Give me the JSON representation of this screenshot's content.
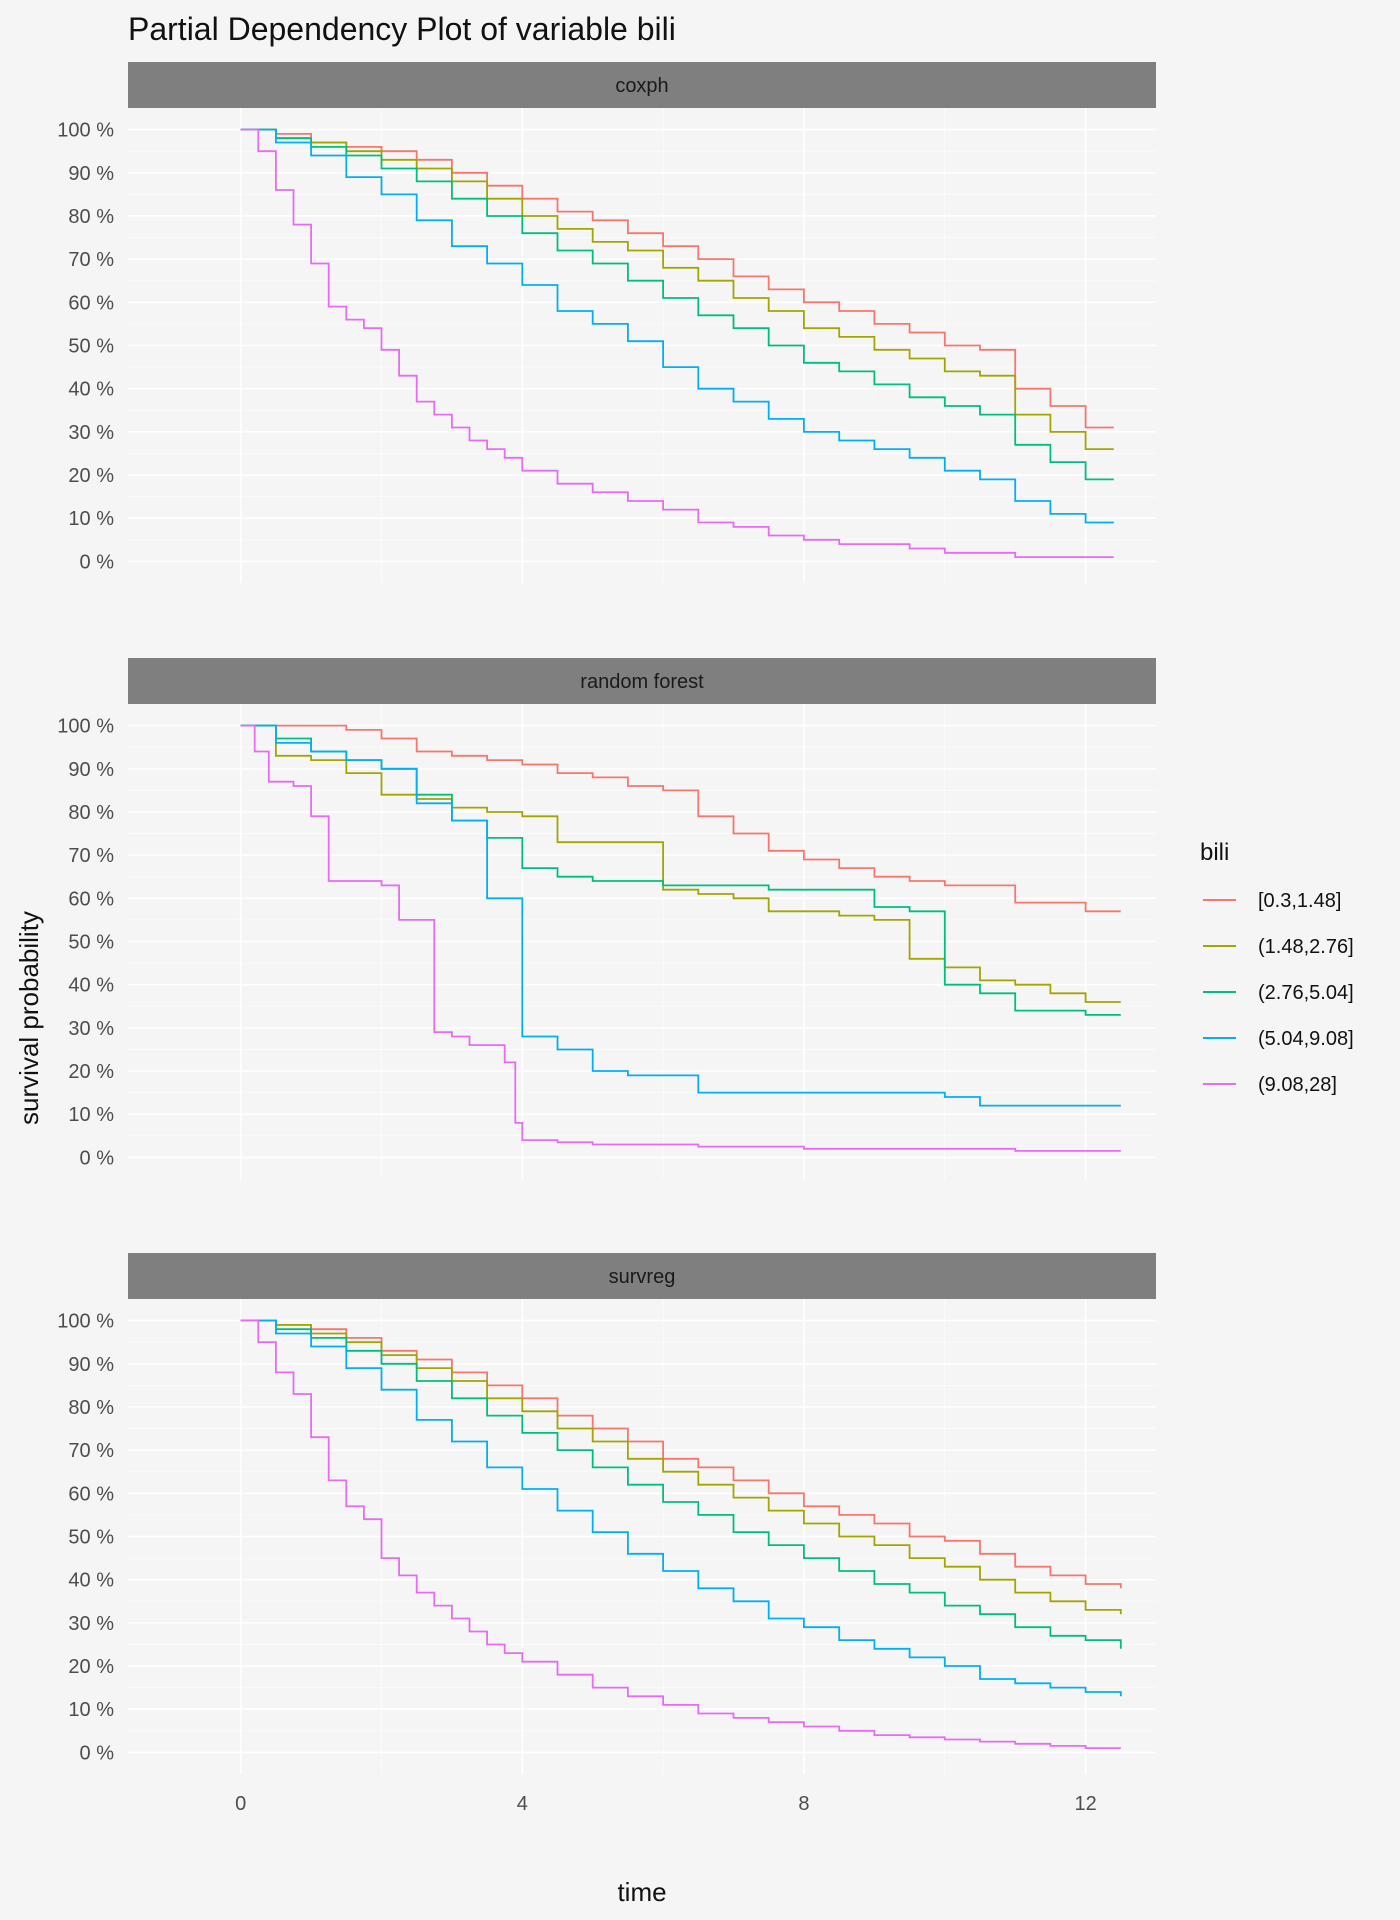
{
  "chart_data": {
    "type": "line",
    "title": "Partial Dependency Plot of variable bili",
    "xlabel": "time",
    "ylabel": "survival probability",
    "xlim": [
      -1.6,
      13.0
    ],
    "ylim": [
      -5,
      105
    ],
    "x_ticks": [
      0,
      4,
      8,
      12
    ],
    "x_tick_labels": [
      "0",
      "4",
      "8",
      "12"
    ],
    "y_ticks": [
      0,
      10,
      20,
      30,
      40,
      50,
      60,
      70,
      80,
      90,
      100
    ],
    "y_tick_labels": [
      "0 %",
      "10 %",
      "20 %",
      "30 %",
      "40 %",
      "50 %",
      "60 %",
      "70 %",
      "80 %",
      "90 %",
      "100 %"
    ],
    "grid": true,
    "step": true,
    "legend": {
      "title": "bili",
      "position": "right",
      "entries": [
        "[0.3,1.48]",
        "(1.48,2.76]",
        "(2.76,5.04]",
        "(5.04,9.08]",
        "(9.08,28]"
      ],
      "colors": [
        "#F8766D",
        "#A3A500",
        "#00BF7D",
        "#00B0F6",
        "#E76BF3"
      ]
    },
    "panels": [
      {
        "strip": "coxph",
        "series": [
          {
            "name": "[0.3,1.48]",
            "x": [
              0,
              0.5,
              1,
              1.5,
              2,
              2.5,
              3,
              3.5,
              4,
              4.5,
              5,
              5.5,
              6,
              6.5,
              7,
              7.5,
              8,
              8.5,
              9,
              9.5,
              10,
              10.5,
              11,
              11.5,
              12,
              12.4
            ],
            "y": [
              100,
              99,
              97,
              96,
              95,
              93,
              90,
              87,
              84,
              81,
              79,
              76,
              73,
              70,
              66,
              63,
              60,
              58,
              55,
              53,
              50,
              49,
              40,
              36,
              31,
              31
            ]
          },
          {
            "name": "(1.48,2.76]",
            "x": [
              0,
              0.5,
              1,
              1.5,
              2,
              2.5,
              3,
              3.5,
              4,
              4.5,
              5,
              5.5,
              6,
              6.5,
              7,
              7.5,
              8,
              8.5,
              9,
              9.5,
              10,
              10.5,
              11,
              11.5,
              12,
              12.4
            ],
            "y": [
              100,
              98,
              97,
              95,
              93,
              91,
              88,
              84,
              80,
              77,
              74,
              72,
              68,
              65,
              61,
              58,
              54,
              52,
              49,
              47,
              44,
              43,
              34,
              30,
              26,
              26
            ]
          },
          {
            "name": "(2.76,5.04]",
            "x": [
              0,
              0.5,
              1,
              1.5,
              2,
              2.5,
              3,
              3.5,
              4,
              4.5,
              5,
              5.5,
              6,
              6.5,
              7,
              7.5,
              8,
              8.5,
              9,
              9.5,
              10,
              10.5,
              11,
              11.5,
              12,
              12.4
            ],
            "y": [
              100,
              98,
              96,
              94,
              91,
              88,
              84,
              80,
              76,
              72,
              69,
              65,
              61,
              57,
              54,
              50,
              46,
              44,
              41,
              38,
              36,
              34,
              27,
              23,
              19,
              19
            ]
          },
          {
            "name": "(5.04,9.08]",
            "x": [
              0,
              0.5,
              1,
              1.5,
              2,
              2.5,
              3,
              3.5,
              4,
              4.5,
              5,
              5.5,
              6,
              6.5,
              7,
              7.5,
              8,
              8.5,
              9,
              9.5,
              10,
              10.5,
              11,
              11.5,
              12,
              12.4
            ],
            "y": [
              100,
              97,
              94,
              89,
              85,
              79,
              73,
              69,
              64,
              58,
              55,
              51,
              45,
              40,
              37,
              33,
              30,
              28,
              26,
              24,
              21,
              19,
              14,
              11,
              9,
              9
            ]
          },
          {
            "name": "(9.08,28]",
            "x": [
              0,
              0.25,
              0.5,
              0.75,
              1,
              1.25,
              1.5,
              1.75,
              2,
              2.25,
              2.5,
              2.75,
              3,
              3.25,
              3.5,
              3.75,
              4,
              4.5,
              5,
              5.5,
              6,
              6.5,
              7,
              7.5,
              8,
              8.5,
              9,
              9.5,
              10,
              10.5,
              11,
              11.5,
              12,
              12.4
            ],
            "y": [
              100,
              95,
              86,
              78,
              69,
              59,
              56,
              54,
              49,
              43,
              37,
              34,
              31,
              28,
              26,
              24,
              21,
              18,
              16,
              14,
              12,
              9,
              8,
              6,
              5,
              4,
              4,
              3,
              2,
              2,
              1,
              1,
              1,
              1
            ]
          }
        ]
      },
      {
        "strip": "random forest",
        "series": [
          {
            "name": "[0.3,1.48]",
            "x": [
              0,
              0.5,
              1,
              1.5,
              2,
              2.5,
              3,
              3.5,
              4,
              4.5,
              5,
              5.5,
              6,
              6.5,
              7,
              7.5,
              8,
              8.5,
              9,
              9.5,
              10,
              10.5,
              11,
              11.5,
              12,
              12.5
            ],
            "y": [
              100,
              100,
              100,
              99,
              97,
              94,
              93,
              92,
              91,
              89,
              88,
              86,
              85,
              79,
              75,
              71,
              69,
              67,
              65,
              64,
              63,
              63,
              59,
              59,
              57,
              57
            ]
          },
          {
            "name": "(1.48,2.76]",
            "x": [
              0,
              0.4,
              0.5,
              1,
              1.5,
              2,
              2.5,
              3,
              3.5,
              4,
              4.5,
              5,
              5.5,
              6,
              6.5,
              7,
              7.5,
              8,
              8.5,
              9,
              9.5,
              10,
              10.5,
              11,
              11.5,
              12,
              12.5
            ],
            "y": [
              100,
              100,
              93,
              92,
              89,
              84,
              83,
              81,
              80,
              79,
              73,
              73,
              73,
              62,
              61,
              60,
              57,
              57,
              56,
              55,
              46,
              44,
              41,
              40,
              38,
              36,
              36
            ]
          },
          {
            "name": "(2.76,5.04]",
            "x": [
              0,
              0.5,
              1,
              1.5,
              2,
              2.5,
              3,
              3.5,
              4,
              4.5,
              5,
              5.5,
              6,
              6.5,
              7,
              7.5,
              8,
              8.5,
              9,
              9.5,
              10,
              10.5,
              11,
              11.5,
              12,
              12.5
            ],
            "y": [
              100,
              97,
              94,
              92,
              90,
              84,
              78,
              74,
              67,
              65,
              64,
              64,
              63,
              63,
              63,
              62,
              62,
              62,
              58,
              57,
              40,
              38,
              34,
              34,
              33,
              33
            ]
          },
          {
            "name": "(5.04,9.08]",
            "x": [
              0,
              0.5,
              1,
              1.5,
              2,
              2.5,
              3,
              3.5,
              4,
              4.5,
              5,
              5.5,
              6,
              6.5,
              7,
              7.5,
              8,
              8.5,
              9,
              9.5,
              10,
              10.5,
              11,
              11.5,
              12,
              12.5
            ],
            "y": [
              100,
              96,
              94,
              92,
              90,
              82,
              78,
              60,
              28,
              25,
              20,
              19,
              19,
              15,
              15,
              15,
              15,
              15,
              15,
              15,
              14,
              12,
              12,
              12,
              12,
              12
            ]
          },
          {
            "name": "(9.08,28]",
            "x": [
              0,
              0.2,
              0.4,
              0.75,
              1,
              1.25,
              1.5,
              2,
              2.25,
              2.5,
              2.75,
              3,
              3.25,
              3.5,
              3.75,
              3.9,
              4,
              4.5,
              5,
              5.5,
              6,
              6.5,
              7,
              8,
              9,
              10,
              11,
              12,
              12.5
            ],
            "y": [
              100,
              94,
              87,
              86,
              79,
              64,
              64,
              63,
              55,
              55,
              29,
              28,
              26,
              26,
              22,
              8,
              4,
              3.5,
              3,
              3,
              3,
              2.5,
              2.5,
              2,
              2,
              2,
              1.5,
              1.5,
              1.5
            ]
          }
        ]
      },
      {
        "strip": "survreg",
        "series": [
          {
            "name": "[0.3,1.48]",
            "x": [
              0,
              0.5,
              1,
              1.5,
              2,
              2.5,
              3,
              3.5,
              4,
              4.5,
              5,
              5.5,
              6,
              6.5,
              7,
              7.5,
              8,
              8.5,
              9,
              9.5,
              10,
              10.5,
              11,
              11.5,
              12,
              12.5
            ],
            "y": [
              100,
              99,
              98,
              96,
              93,
              91,
              88,
              85,
              82,
              78,
              75,
              72,
              68,
              66,
              63,
              60,
              57,
              55,
              53,
              50,
              49,
              46,
              43,
              41,
              39,
              38
            ]
          },
          {
            "name": "(1.48,2.76]",
            "x": [
              0,
              0.5,
              1,
              1.5,
              2,
              2.5,
              3,
              3.5,
              4,
              4.5,
              5,
              5.5,
              6,
              6.5,
              7,
              7.5,
              8,
              8.5,
              9,
              9.5,
              10,
              10.5,
              11,
              11.5,
              12,
              12.5
            ],
            "y": [
              100,
              99,
              97,
              95,
              92,
              89,
              86,
              82,
              79,
              75,
              72,
              68,
              65,
              62,
              59,
              56,
              53,
              50,
              48,
              45,
              43,
              40,
              37,
              35,
              33,
              32
            ]
          },
          {
            "name": "(2.76,5.04]",
            "x": [
              0,
              0.5,
              1,
              1.5,
              2,
              2.5,
              3,
              3.5,
              4,
              4.5,
              5,
              5.5,
              6,
              6.5,
              7,
              7.5,
              8,
              8.5,
              9,
              9.5,
              10,
              10.5,
              11,
              11.5,
              12,
              12.5
            ],
            "y": [
              100,
              98,
              96,
              93,
              90,
              86,
              82,
              78,
              74,
              70,
              66,
              62,
              58,
              55,
              51,
              48,
              45,
              42,
              39,
              37,
              34,
              32,
              29,
              27,
              26,
              24
            ]
          },
          {
            "name": "(5.04,9.08]",
            "x": [
              0,
              0.5,
              1,
              1.5,
              2,
              2.5,
              3,
              3.5,
              4,
              4.5,
              5,
              5.5,
              6,
              6.5,
              7,
              7.5,
              8,
              8.5,
              9,
              9.5,
              10,
              10.5,
              11,
              11.5,
              12,
              12.5
            ],
            "y": [
              100,
              97,
              94,
              89,
              84,
              77,
              72,
              66,
              61,
              56,
              51,
              46,
              42,
              38,
              35,
              31,
              29,
              26,
              24,
              22,
              20,
              17,
              16,
              15,
              14,
              13
            ]
          },
          {
            "name": "(9.08,28]",
            "x": [
              0,
              0.25,
              0.5,
              0.75,
              1,
              1.25,
              1.5,
              1.75,
              2,
              2.25,
              2.5,
              2.75,
              3,
              3.25,
              3.5,
              3.75,
              4,
              4.5,
              5,
              5.5,
              6,
              6.5,
              7,
              7.5,
              8,
              8.5,
              9,
              9.5,
              10,
              10.5,
              11,
              11.5,
              12,
              12.5
            ],
            "y": [
              100,
              95,
              88,
              83,
              73,
              63,
              57,
              54,
              45,
              41,
              37,
              34,
              31,
              28,
              25,
              23,
              21,
              18,
              15,
              13,
              11,
              9,
              8,
              7,
              6,
              5,
              4,
              3.5,
              3,
              2.5,
              2,
              1.5,
              1,
              1
            ]
          }
        ]
      }
    ]
  }
}
